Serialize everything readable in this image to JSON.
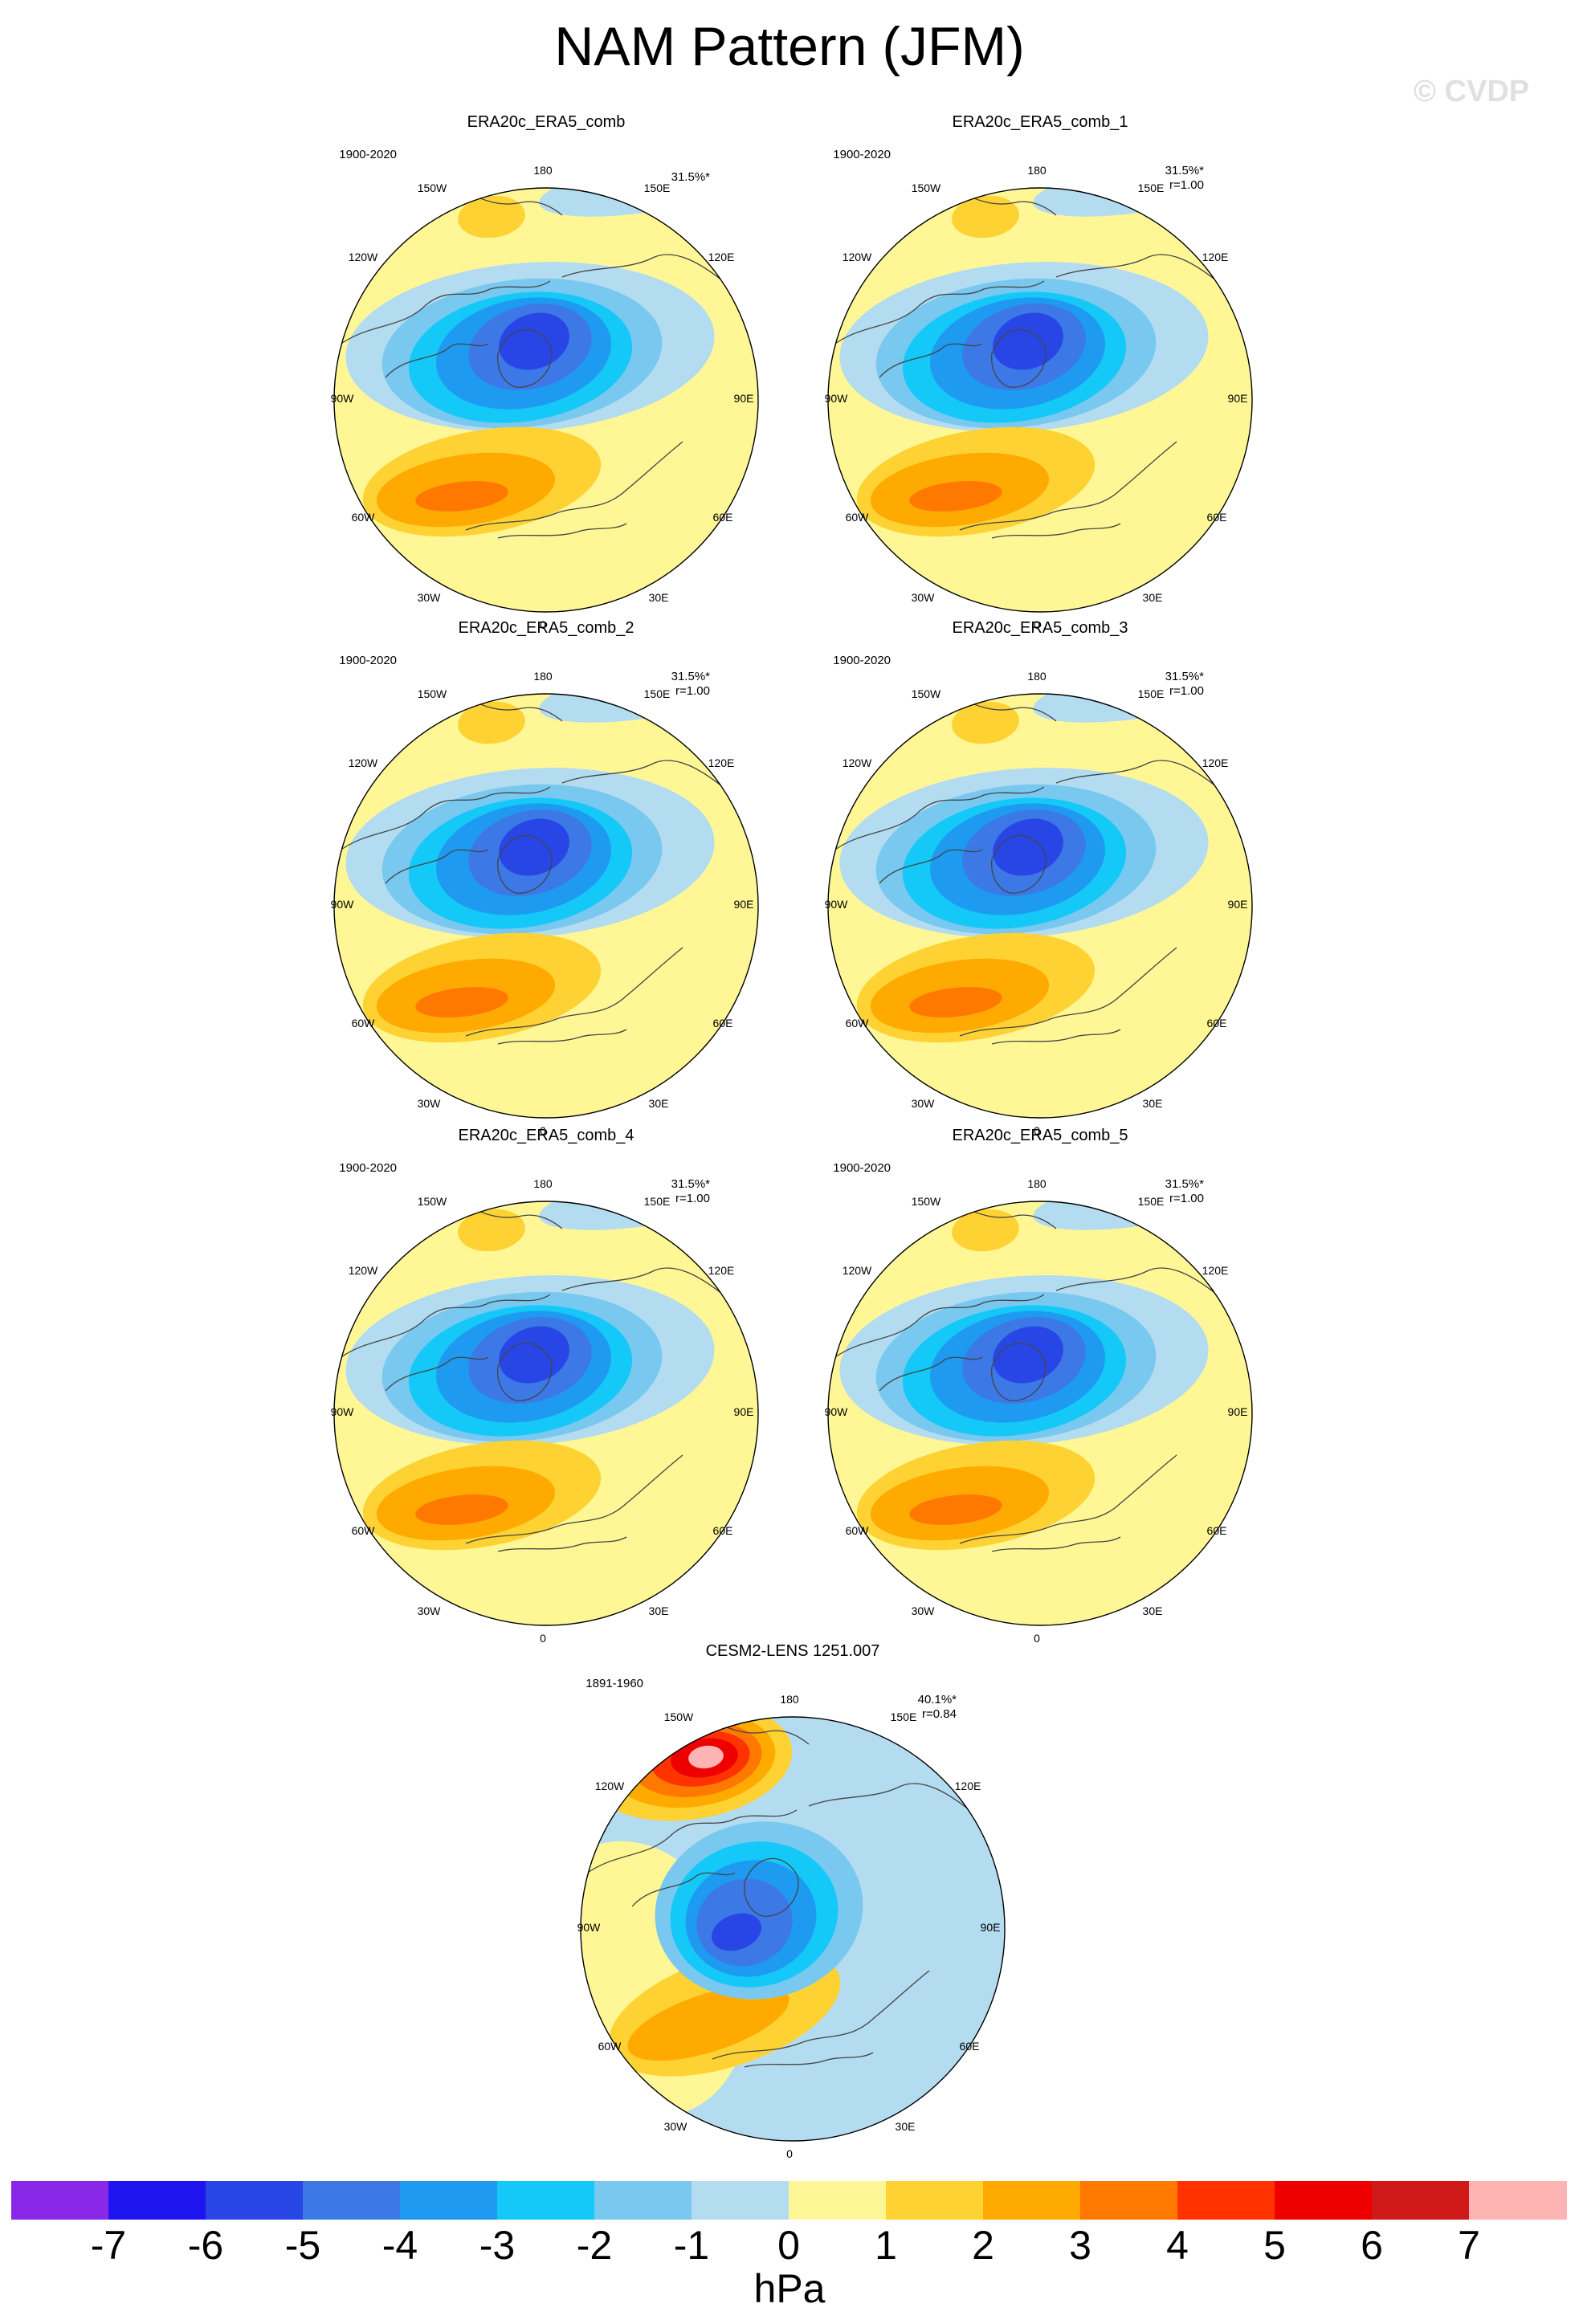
{
  "title": "NAM Pattern (JFM)",
  "watermark": "© CVDP",
  "lon_labels": [
    "180",
    "150E",
    "120E",
    "90E",
    "60E",
    "30E",
    "0",
    "30W",
    "60W",
    "90W",
    "120W",
    "150W"
  ],
  "panels": [
    {
      "name": "ERA20c_ERA5_comb",
      "period": "1900-2020",
      "pct": "31.5%*",
      "r": "",
      "pattern": "obs"
    },
    {
      "name": "ERA20c_ERA5_comb_1",
      "period": "1900-2020",
      "pct": "31.5%*",
      "r": "r=1.00",
      "pattern": "obs"
    },
    {
      "name": "ERA20c_ERA5_comb_2",
      "period": "1900-2020",
      "pct": "31.5%*",
      "r": "r=1.00",
      "pattern": "obs"
    },
    {
      "name": "ERA20c_ERA5_comb_3",
      "period": "1900-2020",
      "pct": "31.5%*",
      "r": "r=1.00",
      "pattern": "obs"
    },
    {
      "name": "ERA20c_ERA5_comb_4",
      "period": "1900-2020",
      "pct": "31.5%*",
      "r": "r=1.00",
      "pattern": "obs"
    },
    {
      "name": "ERA20c_ERA5_comb_5",
      "period": "1900-2020",
      "pct": "31.5%*",
      "r": "r=1.00",
      "pattern": "obs"
    },
    {
      "name": "CESM2-LENS 1251.007",
      "period": "1891-1960",
      "pct": "40.1%*",
      "r": "r=0.84",
      "pattern": "model"
    }
  ],
  "colorbar": {
    "units": "hPa",
    "ticks": [
      "-7",
      "-6",
      "-5",
      "-4",
      "-3",
      "-2",
      "-1",
      "0",
      "1",
      "2",
      "3",
      "4",
      "5",
      "6",
      "7"
    ],
    "colors": [
      "#8a28e8",
      "#1e14f0",
      "#2846e6",
      "#3c78e6",
      "#1e9af0",
      "#14c8f8",
      "#78c8f0",
      "#b4dcf0",
      "#fff796",
      "#fed232",
      "#ffaa00",
      "#ff7800",
      "#ff3200",
      "#ee0000",
      "#d01a1a",
      "#ffb4b4"
    ]
  }
}
